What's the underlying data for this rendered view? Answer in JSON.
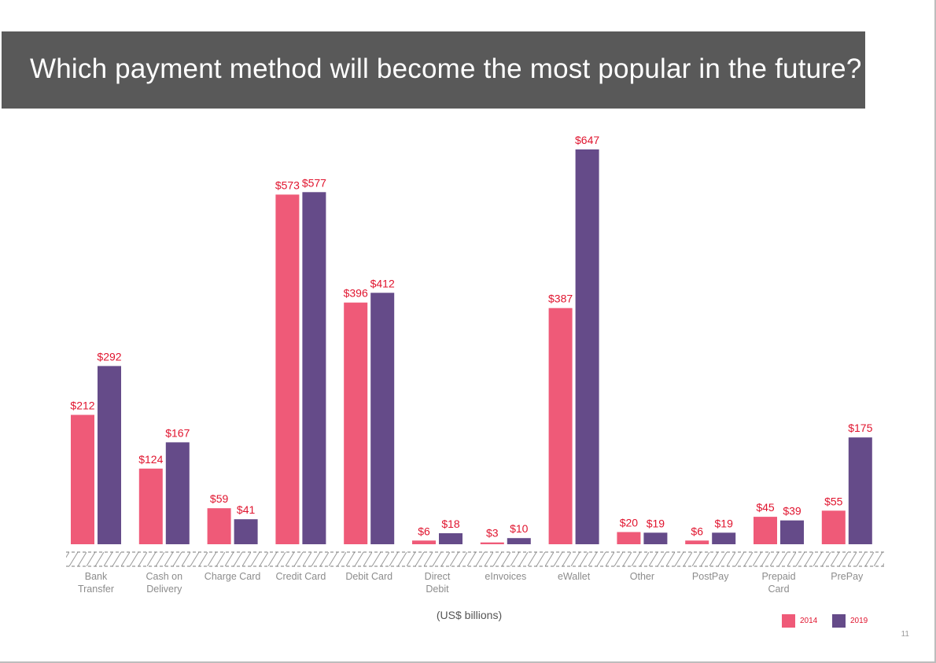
{
  "slide": {
    "title": "Which payment method will become the most popular in the future?",
    "page_number": "11"
  },
  "colors": {
    "title_bg": "#595959",
    "series_2014": "#ef5a78",
    "series_2019": "#654b89",
    "label": "#e0142e",
    "axis_text": "#8c8c8c"
  },
  "chart_data": {
    "type": "bar",
    "title": "Which payment method will become the most popular in the future?",
    "xlabel": "",
    "ylabel": "(US$ billions)",
    "unit_label": "(US$ billions)",
    "ylim": [
      0,
      700
    ],
    "grid": false,
    "legend_position": "bottom-right",
    "categories": [
      [
        "Bank",
        "Transfer"
      ],
      [
        "Cash on",
        "Delivery"
      ],
      [
        "Charge Card"
      ],
      [
        "Credit Card"
      ],
      [
        "Debit Card"
      ],
      [
        "Direct",
        "Debit"
      ],
      [
        "eInvoices"
      ],
      [
        "eWallet"
      ],
      [
        "Other"
      ],
      [
        "PostPay"
      ],
      [
        "Prepaid",
        "Card"
      ],
      [
        "PrePay"
      ]
    ],
    "series": [
      {
        "name": "2014",
        "color": "#ef5a78",
        "values": [
          212,
          124,
          59,
          573,
          396,
          6,
          3,
          387,
          20,
          6,
          45,
          55
        ],
        "labels": [
          "$212",
          "$124",
          "$59",
          "$573",
          "$396",
          "$6",
          "$3",
          "$387",
          "$20",
          "$6",
          "$45",
          "$55"
        ]
      },
      {
        "name": "2019",
        "color": "#654b89",
        "values": [
          292,
          167,
          41,
          577,
          412,
          18,
          10,
          647,
          19,
          19,
          39,
          175
        ],
        "labels": [
          "$292",
          "$167",
          "$41",
          "$577",
          "$412",
          "$18",
          "$10",
          "$647",
          "$19",
          "$19",
          "$39",
          "$175"
        ]
      }
    ]
  }
}
